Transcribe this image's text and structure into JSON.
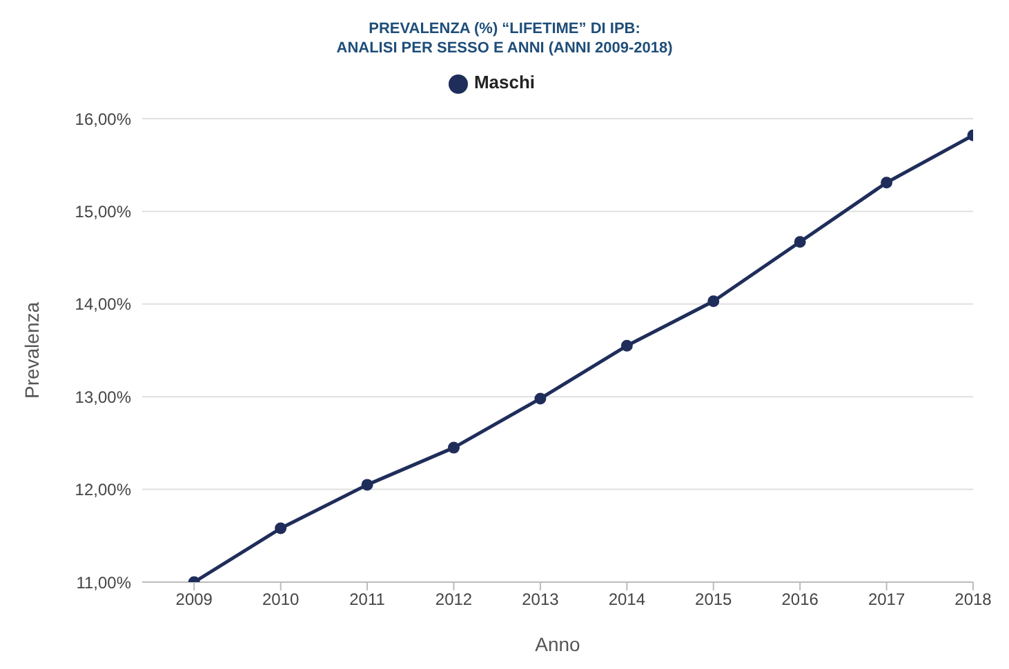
{
  "chart_data": {
    "type": "line",
    "title": "PREVALENZA (%) “LIFETIME” DI IPB:\nANALISI PER SESSO E ANNI (ANNI 2009-2018)",
    "xlabel": "Anno",
    "ylabel": "Prevalenza",
    "categories": [
      "2009",
      "2010",
      "2011",
      "2012",
      "2013",
      "2014",
      "2015",
      "2016",
      "2017",
      "2018"
    ],
    "series": [
      {
        "name": "Maschi",
        "color": "#1f2d5a",
        "values": [
          11.0,
          11.58,
          12.05,
          12.45,
          12.98,
          13.55,
          14.03,
          14.67,
          15.31,
          15.82
        ]
      }
    ],
    "ylim": [
      11,
      16
    ],
    "yticks": [
      {
        "value": 11,
        "label": "11,00%"
      },
      {
        "value": 12,
        "label": "12,00%"
      },
      {
        "value": 13,
        "label": "13,00%"
      },
      {
        "value": 14,
        "label": "14,00%"
      },
      {
        "value": 15,
        "label": "15,00%"
      },
      {
        "value": 16,
        "label": "16,00%"
      }
    ],
    "grid": "y",
    "legend": "top",
    "marker": "circle",
    "line_style": "solid"
  }
}
